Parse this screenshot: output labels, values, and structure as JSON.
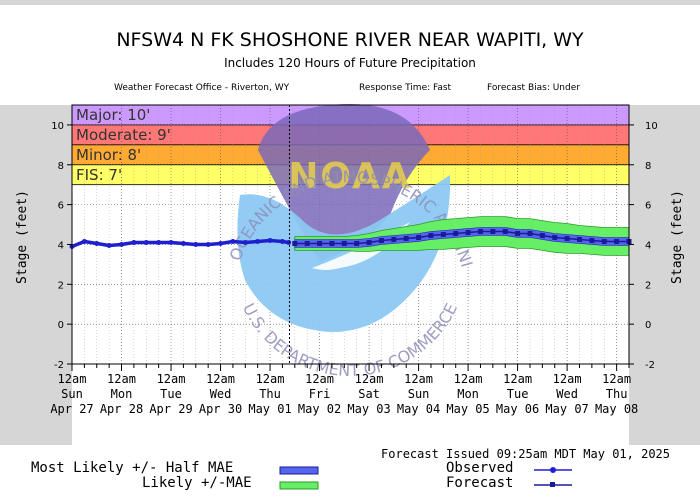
{
  "header": {
    "title": "NFSW4 N FK SHOSHONE RIVER NEAR WAPITI, WY",
    "subtitle": "Includes 120 Hours of Future Precipitation",
    "office": "Weather Forecast Office - Riverton, WY",
    "response_time": "Response Time: Fast",
    "forecast_bias": "Forecast Bias: Under"
  },
  "watermark": {
    "logo_text": "NOAA",
    "ring_top": "NATIONAL OCEANIC AND ATMOSPHERIC ADMINISTRATION",
    "ring_bottom": "U.S. DEPARTMENT OF COMMERCE"
  },
  "footer": {
    "issued": "Forecast Issued 09:25am MDT May 01, 2025",
    "legend_half_mae": "Most Likely +/- Half MAE",
    "legend_mae": "Likely +/-MAE",
    "legend_observed": "Observed",
    "legend_forecast": "Forecast"
  },
  "colors": {
    "major": "#cc99ff",
    "moderate": "#ff7777",
    "minor": "#ffaa33",
    "fis": "#ffff66",
    "observed_line": "#1f1fd0",
    "forecast_line": "#1a1a9a",
    "band_mae": "#66ee66",
    "band_half_mae": "#5566ee",
    "noaa_water": "#8cc8f2",
    "noaa_sky": "#7a68b8",
    "watermark_text": "#8d8db8",
    "outer_bg": "#d6d6d6"
  },
  "chart_data": {
    "type": "line",
    "ylabel": "Stage  (feet)",
    "ylim": [
      -2,
      11
    ],
    "yticks": [
      -2,
      0,
      2,
      4,
      6,
      8,
      10
    ],
    "grid": true,
    "xlim": [
      "2025-04-27 00:00",
      "2025-05-08 06:00"
    ],
    "xticks": [
      {
        "t": "2025-04-27 00:00",
        "l1": "12am",
        "l2": "Sun",
        "l3": "Apr 27"
      },
      {
        "t": "2025-04-28 00:00",
        "l1": "12am",
        "l2": "Mon",
        "l3": "Apr 28"
      },
      {
        "t": "2025-04-29 00:00",
        "l1": "12am",
        "l2": "Tue",
        "l3": "Apr 29"
      },
      {
        "t": "2025-04-30 00:00",
        "l1": "12am",
        "l2": "Wed",
        "l3": "Apr 30"
      },
      {
        "t": "2025-05-01 00:00",
        "l1": "12am",
        "l2": "Thu",
        "l3": "May 01"
      },
      {
        "t": "2025-05-02 00:00",
        "l1": "12am",
        "l2": "Fri",
        "l3": "May 02"
      },
      {
        "t": "2025-05-03 00:00",
        "l1": "12am",
        "l2": "Sat",
        "l3": "May 03"
      },
      {
        "t": "2025-05-04 00:00",
        "l1": "12am",
        "l2": "Sun",
        "l3": "May 04"
      },
      {
        "t": "2025-05-05 00:00",
        "l1": "12am",
        "l2": "Mon",
        "l3": "May 05"
      },
      {
        "t": "2025-05-06 00:00",
        "l1": "12am",
        "l2": "Tue",
        "l3": "May 06"
      },
      {
        "t": "2025-05-07 00:00",
        "l1": "12am",
        "l2": "Wed",
        "l3": "May 07"
      },
      {
        "t": "2025-05-08 00:00",
        "l1": "12am",
        "l2": "Thu",
        "l3": "May 08"
      }
    ],
    "forecast_issued_at": "2025-05-01 09:25",
    "flood_categories": [
      {
        "label": "Major: 10'",
        "from": 10,
        "to": 11,
        "color": "#cc99ff"
      },
      {
        "label": "Moderate: 9'",
        "from": 9,
        "to": 10,
        "color": "#ff7777"
      },
      {
        "label": "Minor: 8'",
        "from": 8,
        "to": 9,
        "color": "#ffaa33"
      },
      {
        "label": "FIS: 7'",
        "from": 7,
        "to": 8,
        "color": "#ffff66"
      }
    ],
    "observed": {
      "name": "Observed",
      "x": [
        "2025-04-27 00:00",
        "2025-04-27 06:00",
        "2025-04-27 12:00",
        "2025-04-27 18:00",
        "2025-04-28 00:00",
        "2025-04-28 06:00",
        "2025-04-28 12:00",
        "2025-04-28 18:00",
        "2025-04-29 00:00",
        "2025-04-29 06:00",
        "2025-04-29 12:00",
        "2025-04-29 18:00",
        "2025-04-30 00:00",
        "2025-04-30 06:00",
        "2025-04-30 12:00",
        "2025-04-30 18:00",
        "2025-05-01 00:00",
        "2025-05-01 06:00",
        "2025-05-01 09:00"
      ],
      "y": [
        3.9,
        4.15,
        4.05,
        3.95,
        4.0,
        4.1,
        4.1,
        4.1,
        4.1,
        4.05,
        4.0,
        4.0,
        4.05,
        4.15,
        4.1,
        4.15,
        4.2,
        4.15,
        4.1
      ]
    },
    "forecast": {
      "name": "Forecast",
      "x": [
        "2025-05-01 12:00",
        "2025-05-01 18:00",
        "2025-05-02 00:00",
        "2025-05-02 06:00",
        "2025-05-02 12:00",
        "2025-05-02 18:00",
        "2025-05-03 00:00",
        "2025-05-03 06:00",
        "2025-05-03 12:00",
        "2025-05-03 18:00",
        "2025-05-04 00:00",
        "2025-05-04 06:00",
        "2025-05-04 12:00",
        "2025-05-04 18:00",
        "2025-05-05 00:00",
        "2025-05-05 06:00",
        "2025-05-05 12:00",
        "2025-05-05 18:00",
        "2025-05-06 00:00",
        "2025-05-06 06:00",
        "2025-05-06 12:00",
        "2025-05-06 18:00",
        "2025-05-07 00:00",
        "2025-05-07 06:00",
        "2025-05-07 12:00",
        "2025-05-07 18:00",
        "2025-05-08 00:00",
        "2025-05-08 06:00"
      ],
      "y": [
        4.05,
        4.05,
        4.05,
        4.05,
        4.05,
        4.05,
        4.1,
        4.2,
        4.25,
        4.3,
        4.35,
        4.45,
        4.5,
        4.55,
        4.6,
        4.65,
        4.65,
        4.65,
        4.55,
        4.55,
        4.45,
        4.35,
        4.3,
        4.25,
        4.2,
        4.15,
        4.15,
        4.15
      ],
      "half_mae": 0.2,
      "mae_band_halfwidth": [
        0.15,
        0.15,
        0.15,
        0.15,
        0.15,
        0.2,
        0.25,
        0.3,
        0.35,
        0.4,
        0.45,
        0.5,
        0.55,
        0.55,
        0.55,
        0.55,
        0.55,
        0.55,
        0.55,
        0.55,
        0.55,
        0.55,
        0.55,
        0.5,
        0.5,
        0.5,
        0.5,
        0.5
      ]
    }
  }
}
